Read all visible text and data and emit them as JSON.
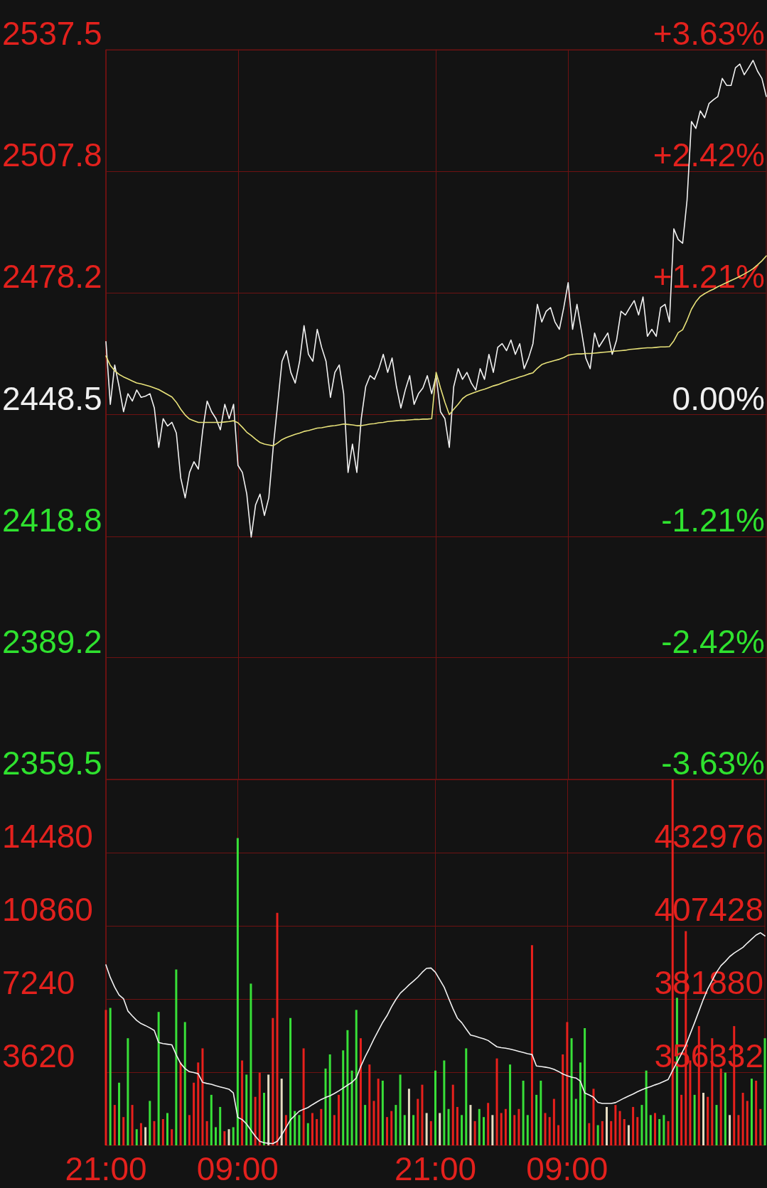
{
  "chart_data": [
    {
      "type": "line",
      "categories": [
        null,
        null,
        null,
        null,
        null,
        null,
        null,
        null,
        null,
        null,
        null,
        null,
        null,
        null,
        null,
        null,
        null,
        null,
        null,
        null,
        null,
        null,
        null,
        null,
        null,
        null,
        null,
        null,
        null,
        null,
        null,
        null,
        null,
        null,
        null,
        null,
        null,
        null,
        null,
        null,
        null,
        null,
        null,
        null,
        null,
        null,
        null,
        null,
        null,
        null,
        null,
        null,
        null,
        null,
        null,
        null,
        null,
        null,
        null,
        null,
        null,
        null,
        null,
        null,
        null,
        null,
        null,
        null,
        null,
        null,
        null,
        null,
        null,
        null,
        null,
        null,
        null,
        null,
        null,
        null,
        null,
        null,
        null,
        null,
        null,
        null,
        null,
        null,
        null,
        null,
        null,
        null,
        null,
        null,
        null,
        null,
        null,
        null,
        null,
        null,
        null,
        null,
        null,
        null,
        null,
        null,
        null,
        null,
        null,
        null,
        null,
        null,
        null,
        null,
        null,
        null,
        null,
        null,
        null,
        null,
        null,
        null,
        null,
        null,
        null,
        null,
        null,
        null,
        null,
        null,
        null,
        null,
        null,
        null,
        null,
        null,
        null,
        null,
        null,
        null,
        null,
        null,
        null,
        null,
        null,
        null,
        null,
        null,
        null,
        null,
        null
      ],
      "ylim": [
        2359.5,
        2537.5
      ],
      "yticks": [
        2359.5,
        2389.2,
        2418.8,
        2448.5,
        2478.2,
        2507.8,
        2537.5
      ],
      "y2lim": [
        -3.63,
        3.63
      ],
      "y2ticks": [
        {
          "value": -3.63,
          "label": "-3.63%"
        },
        {
          "value": -2.42,
          "label": "-2.42%"
        },
        {
          "value": -1.21,
          "label": "-1.21%"
        },
        {
          "value": 0,
          "label": "0.00%"
        },
        {
          "value": 1.21,
          "label": "+1.21%"
        },
        {
          "value": 2.42,
          "label": "+2.42%"
        },
        {
          "value": 3.63,
          "label": "+3.63%"
        }
      ],
      "tick_labels": "y",
      "grid": true,
      "series": [
        {
          "color": "#f2f2f2",
          "values": [
            2466.3,
            2451,
            2460.6,
            2455.3,
            2449.2,
            2453.6,
            2451.8,
            2454.5,
            2452.7,
            2453,
            2453.6,
            2450.1,
            2440.5,
            2447.5,
            2445.7,
            2446.6,
            2444,
            2433,
            2428.2,
            2434.4,
            2437,
            2435.2,
            2444.8,
            2451.8,
            2449.2,
            2447.5,
            2444.8,
            2451,
            2447.5,
            2451,
            2436.1,
            2434.4,
            2429.1,
            2418.6,
            2426.5,
            2429.1,
            2423.9,
            2428.2,
            2440.5,
            2451,
            2461.5,
            2464.1,
            2458.8,
            2456.2,
            2461.5,
            2470.2,
            2463.2,
            2461.5,
            2469.3,
            2464.9,
            2461.5,
            2452.7,
            2458.8,
            2460.6,
            2453.6,
            2434.4,
            2441.3,
            2434.4,
            2447.5,
            2455.3,
            2458,
            2457.1,
            2459.7,
            2463.2,
            2458.8,
            2462.3,
            2455.3,
            2450.1,
            2454.5,
            2458,
            2451,
            2453.6,
            2455,
            2458,
            2453.6,
            2458,
            2449.2,
            2447.5,
            2440.5,
            2455.3,
            2459.7,
            2457.1,
            2458.8,
            2456.2,
            2454.5,
            2459.7,
            2457.1,
            2463.2,
            2458.8,
            2464.9,
            2465.8,
            2464.1,
            2466.7,
            2463.2,
            2465.8,
            2459.7,
            2462.3,
            2465.8,
            2475.4,
            2471.1,
            2473.7,
            2474.6,
            2471.1,
            2469.3,
            2474.6,
            2480.7,
            2469.3,
            2475.4,
            2469,
            2462.3,
            2459.7,
            2468.4,
            2465,
            2466.7,
            2468.4,
            2463.2,
            2466.7,
            2473.7,
            2472.8,
            2474.6,
            2476.3,
            2472.8,
            2477.2,
            2467.6,
            2469.3,
            2467.6,
            2474.6,
            2475.4,
            2471.1,
            2493.8,
            2491.2,
            2490.3,
            2500.8,
            2520,
            2518.3,
            2522.6,
            2520.9,
            2524.4,
            2525.3,
            2526.1,
            2530.5,
            2528.8,
            2528.8,
            2533.1,
            2534,
            2531.4,
            2533.1,
            2534.9,
            2532.3,
            2530.5,
            2526.1
          ]
        },
        {
          "color": "#e8e27a",
          "values": [
            2462.8,
            2460.5,
            2459.2,
            2458.3,
            2457.7,
            2457.2,
            2456.7,
            2456.2,
            2456,
            2455.7,
            2455.4,
            2455,
            2454.6,
            2454,
            2453.4,
            2452.8,
            2451.5,
            2449.8,
            2448.4,
            2447.4,
            2447,
            2446.6,
            2446.6,
            2446.6,
            2446.6,
            2446.6,
            2446.6,
            2446.7,
            2446.8,
            2447,
            2446.5,
            2445.4,
            2444.2,
            2443.4,
            2442.5,
            2441.7,
            2441.3,
            2441.1,
            2440.9,
            2441.6,
            2442.4,
            2442.9,
            2443.3,
            2443.7,
            2444,
            2444.4,
            2444.6,
            2444.9,
            2445.2,
            2445.3,
            2445.5,
            2445.7,
            2445.8,
            2446,
            2446.2,
            2446.1,
            2446,
            2445.8,
            2445.8,
            2446,
            2446.2,
            2446.3,
            2446.5,
            2446.6,
            2446.8,
            2446.9,
            2447,
            2447.1,
            2447.1,
            2447.2,
            2447.3,
            2447.3,
            2447.4,
            2447.4,
            2447.5,
            2458.8,
            2455,
            2451.5,
            2448.5,
            2449.8,
            2451,
            2452.4,
            2453.2,
            2453.6,
            2454,
            2454.4,
            2454.7,
            2455.1,
            2455.5,
            2455.8,
            2456.2,
            2456.6,
            2457,
            2457.3,
            2457.7,
            2458,
            2458.4,
            2458.7,
            2459.8,
            2460.7,
            2461.1,
            2461.4,
            2461.7,
            2462,
            2462.4,
            2463,
            2463.2,
            2463.3,
            2463.3,
            2463.4,
            2463.4,
            2463.5,
            2463.6,
            2463.7,
            2463.8,
            2463.9,
            2464,
            2464.1,
            2464.2,
            2464.4,
            2464.5,
            2464.6,
            2464.7,
            2464.8,
            2464.8,
            2464.9,
            2465,
            2465,
            2465.1,
            2466.5,
            2468.5,
            2469.2,
            2471.5,
            2474.2,
            2476,
            2477.3,
            2478,
            2478.6,
            2479.1,
            2479.7,
            2480.2,
            2480.7,
            2481.2,
            2481.7,
            2482.2,
            2482.8,
            2483.4,
            2484.1,
            2485,
            2486,
            2487.2
          ]
        }
      ]
    },
    {
      "type": "bar",
      "categories": [
        "21:00",
        null,
        null,
        null,
        null,
        null,
        null,
        null,
        null,
        null,
        null,
        null,
        null,
        null,
        null,
        null,
        null,
        null,
        null,
        null,
        null,
        null,
        null,
        null,
        null,
        null,
        null,
        null,
        null,
        null,
        "09:00",
        null,
        null,
        null,
        null,
        null,
        null,
        null,
        null,
        null,
        null,
        null,
        null,
        null,
        null,
        null,
        null,
        null,
        null,
        null,
        null,
        null,
        null,
        null,
        null,
        null,
        null,
        null,
        null,
        null,
        null,
        null,
        null,
        null,
        null,
        null,
        null,
        null,
        null,
        null,
        null,
        null,
        null,
        null,
        null,
        "21:00",
        null,
        null,
        null,
        null,
        null,
        null,
        null,
        null,
        null,
        null,
        null,
        null,
        null,
        null,
        null,
        null,
        null,
        null,
        null,
        null,
        null,
        null,
        null,
        null,
        null,
        null,
        null,
        null,
        null,
        "09:00",
        null,
        null,
        null,
        null,
        null,
        null,
        null,
        null,
        null,
        null,
        null,
        null,
        null,
        null,
        null,
        null,
        null,
        null,
        null,
        null,
        null,
        null,
        null,
        null,
        null,
        null,
        null,
        null,
        null,
        null,
        null,
        null,
        null,
        null,
        null,
        null,
        null,
        null,
        null,
        null,
        null,
        null,
        null,
        null,
        null
      ],
      "ylim": [
        0,
        18100
      ],
      "yticks": [
        3620,
        7240,
        10860,
        14480
      ],
      "y2lim": [
        330784,
        458524
      ],
      "y2ticks": [
        356332,
        381880,
        407428,
        432976
      ],
      "grid": true,
      "series": [
        {
          "values": [
            6700,
            6800,
            2000,
            3100,
            1400,
            5300,
            2000,
            800,
            1100,
            900,
            2200,
            1200,
            6600,
            1300,
            1600,
            800,
            8700,
            4100,
            6100,
            1500,
            3100,
            4100,
            4800,
            1200,
            2500,
            900,
            1900,
            700,
            800,
            900,
            15200,
            4200,
            3500,
            8000,
            2400,
            3600,
            2600,
            3500,
            6300,
            11500,
            3300,
            1500,
            6300,
            1700,
            1500,
            4800,
            1100,
            1600,
            1300,
            1800,
            3800,
            4500,
            1500,
            2500,
            4700,
            5700,
            3700,
            6700,
            5300,
            2000,
            4000,
            2200,
            3300,
            3200,
            1400,
            1700,
            2000,
            3500,
            1500,
            2800,
            1500,
            2300,
            3000,
            1600,
            1200,
            3700,
            1600,
            4200,
            1800,
            3000,
            1900,
            1500,
            4800,
            2000,
            1200,
            1800,
            1400,
            2100,
            1500,
            4300,
            1600,
            1800,
            4000,
            1500,
            1800,
            3200,
            1500,
            9900,
            2500,
            3200,
            1600,
            1400,
            2300,
            1000,
            4500,
            6100,
            5300,
            2300,
            4100,
            5800,
            1100,
            2800,
            1000,
            1200,
            1900,
            1200,
            2000,
            1700,
            1300,
            1000,
            1900,
            1400,
            2000,
            3700,
            1500,
            1600,
            1300,
            1500,
            1200,
            18100,
            7300,
            2500,
            10600,
            4200,
            2500,
            5900,
            2600,
            2400,
            5300,
            2000,
            3800,
            3600,
            1500,
            5900,
            1500,
            2600,
            2200,
            3300,
            3200,
            1800,
            5300
          ],
          "colors": [
            "#e8201c",
            "#38e038",
            "#e8201c",
            "#38e038",
            "#e8201c",
            "#38e038",
            "#e8201c",
            "#38e038",
            "#e8201c",
            "#e6dcc2",
            "#38e038",
            "#e8201c",
            "#38e038",
            "#e8201c",
            "#38e038",
            "#e8201c",
            "#38e038",
            "#e8201c",
            "#38e038",
            "#e8201c",
            "#e8201c",
            "#e8201c",
            "#e8201c",
            "#e8201c",
            "#38e038",
            "#38e038",
            "#38e038",
            "#e8201c",
            "#e6dcc2",
            "#38e038",
            "#38e038",
            "#e8201c",
            "#38e038",
            "#38e038",
            "#e8201c",
            "#e8201c",
            "#38e038",
            "#e6dcc2",
            "#e8201c",
            "#e8201c",
            "#e6dcc2",
            "#e8201c",
            "#38e038",
            "#38e038",
            "#38e038",
            "#e8201c",
            "#38e038",
            "#e8201c",
            "#e8201c",
            "#e8201c",
            "#38e038",
            "#38e038",
            "#e8201c",
            "#e8201c",
            "#38e038",
            "#38e038",
            "#38e038",
            "#38e038",
            "#e8201c",
            "#38e038",
            "#e8201c",
            "#e8201c",
            "#e8201c",
            "#38e038",
            "#e8201c",
            "#e8201c",
            "#38e038",
            "#38e038",
            "#38e038",
            "#e6dcc2",
            "#38e038",
            "#e8201c",
            "#e8201c",
            "#e6dcc2",
            "#e8201c",
            "#38e038",
            "#e6dcc2",
            "#38e038",
            "#38e038",
            "#e8201c",
            "#e8201c",
            "#38e038",
            "#38e038",
            "#e6dcc2",
            "#e8201c",
            "#38e038",
            "#38e038",
            "#e8201c",
            "#e6dcc2",
            "#e8201c",
            "#e8201c",
            "#e8201c",
            "#38e038",
            "#e8201c",
            "#e8201c",
            "#38e038",
            "#38e038",
            "#e8201c",
            "#38e038",
            "#38e038",
            "#e8201c",
            "#e8201c",
            "#e8201c",
            "#e8201c",
            "#e8201c",
            "#e8201c",
            "#38e038",
            "#38e038",
            "#38e038",
            "#38e038",
            "#e8201c",
            "#e8201c",
            "#38e038",
            "#e8201c",
            "#e6dcc2",
            "#e8201c",
            "#e8201c",
            "#e8201c",
            "#e8201c",
            "#e6dcc2",
            "#e8201c",
            "#e8201c",
            "#38e038",
            "#38e038",
            "#38e038",
            "#e8201c",
            "#38e038",
            "#38e038",
            "#e8201c",
            "#e8201c",
            "#38e038",
            "#e8201c",
            "#e8201c",
            "#e8201c",
            "#38e038",
            "#e8201c",
            "#e6dcc2",
            "#e8201c",
            "#e8201c",
            "#38e038",
            "#e8201c",
            "#38e038",
            "#e6dcc2",
            "#e8201c",
            "#e8201c",
            "#e8201c",
            "#e8201c",
            "#38e038",
            "#e8201c",
            "#e8201c",
            "#38e038"
          ]
        },
        {
          "type": "line",
          "axis": "y2",
          "color": "#f2f2f2",
          "values": [
            393800,
            389400,
            386000,
            383300,
            382000,
            377700,
            376000,
            374400,
            373300,
            372600,
            371800,
            370900,
            366700,
            366300,
            366100,
            365900,
            362400,
            359400,
            357600,
            356500,
            356200,
            355800,
            352800,
            352400,
            352100,
            351600,
            351200,
            350800,
            350400,
            349100,
            340600,
            339800,
            338300,
            336100,
            334000,
            332200,
            331700,
            331500,
            331400,
            332200,
            334400,
            337000,
            339700,
            341200,
            342700,
            343400,
            344000,
            345000,
            345900,
            346800,
            347500,
            348100,
            348900,
            349800,
            350800,
            351800,
            352800,
            354300,
            358300,
            361700,
            364700,
            367900,
            370800,
            373700,
            376100,
            379100,
            381700,
            383900,
            385300,
            386800,
            388100,
            389500,
            391200,
            392600,
            392700,
            391200,
            388600,
            386000,
            382200,
            378500,
            375200,
            373600,
            371400,
            369300,
            368900,
            368400,
            368000,
            367400,
            366300,
            365200,
            364900,
            364700,
            364400,
            364000,
            363600,
            363200,
            362800,
            362500,
            358500,
            358300,
            358100,
            357800,
            357300,
            356600,
            355700,
            355100,
            354600,
            354300,
            353200,
            349100,
            348400,
            347600,
            345800,
            345400,
            345400,
            345400,
            345700,
            346500,
            347300,
            348000,
            348700,
            349500,
            350200,
            350800,
            351300,
            351900,
            352400,
            353100,
            353800,
            356900,
            359800,
            362700,
            365700,
            369700,
            373600,
            377700,
            381800,
            385400,
            388300,
            391200,
            393500,
            395000,
            396700,
            397900,
            398900,
            399900,
            401400,
            402800,
            404200,
            405000,
            403900
          ]
        }
      ]
    }
  ]
}
